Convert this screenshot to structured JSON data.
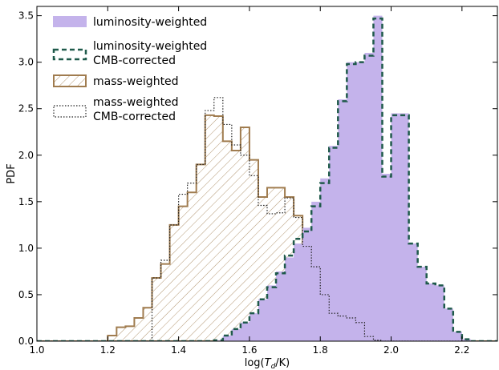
{
  "chart_data": {
    "type": "histogram",
    "ylabel": "PDF",
    "xlabel": "log(T_d/K)",
    "xlim": [
      1.0,
      2.3
    ],
    "ylim": [
      0.0,
      3.6
    ],
    "xticks": [
      "1.0",
      "1.2",
      "1.4",
      "1.6",
      "1.8",
      "2.0",
      "2.2"
    ],
    "yticks": [
      "0.0",
      "0.5",
      "1.0",
      "1.5",
      "2.0",
      "2.5",
      "3.0",
      "3.5"
    ],
    "bin_edges": [
      1.0,
      1.025,
      1.05,
      1.075,
      1.1,
      1.125,
      1.15,
      1.175,
      1.2,
      1.225,
      1.25,
      1.275,
      1.3,
      1.325,
      1.35,
      1.375,
      1.4,
      1.425,
      1.45,
      1.475,
      1.5,
      1.525,
      1.55,
      1.575,
      1.6,
      1.625,
      1.65,
      1.675,
      1.7,
      1.725,
      1.75,
      1.775,
      1.8,
      1.825,
      1.85,
      1.875,
      1.9,
      1.925,
      1.95,
      1.975,
      2.0,
      2.025,
      2.05,
      2.075,
      2.1,
      2.125,
      2.15,
      2.175,
      2.2,
      2.225,
      2.25,
      2.275,
      2.3
    ],
    "legend_position": "top-left",
    "series": [
      {
        "name": "luminosity-weighted",
        "style": "filled",
        "color": "#c4b3eb",
        "values": [
          0,
          0,
          0,
          0,
          0,
          0,
          0,
          0,
          0,
          0,
          0,
          0,
          0,
          0,
          0,
          0,
          0,
          0,
          0,
          0,
          0.01,
          0.06,
          0.13,
          0.2,
          0.3,
          0.45,
          0.6,
          0.75,
          0.9,
          1.05,
          1.22,
          1.5,
          1.75,
          2.1,
          2.6,
          3.0,
          3.0,
          3.1,
          3.5,
          1.8,
          2.45,
          2.45,
          1.05,
          0.8,
          0.62,
          0.6,
          0.35,
          0.1,
          0.02,
          0,
          0,
          0
        ]
      },
      {
        "name": "luminosity-weighted\nCMB-corrected",
        "style": "dashed",
        "color": "#1f5a4b",
        "values": [
          0,
          0,
          0,
          0,
          0,
          0,
          0,
          0,
          0,
          0,
          0,
          0,
          0,
          0,
          0,
          0,
          0,
          0,
          0,
          0,
          0.01,
          0.06,
          0.13,
          0.2,
          0.3,
          0.45,
          0.58,
          0.73,
          0.92,
          1.1,
          1.18,
          1.45,
          1.7,
          2.08,
          2.58,
          2.98,
          3.0,
          3.07,
          3.47,
          1.77,
          2.43,
          2.43,
          1.05,
          0.8,
          0.62,
          0.6,
          0.35,
          0.1,
          0.02,
          0,
          0,
          0
        ]
      },
      {
        "name": "mass-weighted",
        "style": "hatched",
        "color": "#a07c4f",
        "values": [
          0,
          0,
          0,
          0,
          0,
          0,
          0,
          0,
          0.06,
          0.15,
          0.16,
          0.25,
          0.36,
          0.68,
          0.83,
          1.25,
          1.45,
          1.6,
          1.9,
          2.43,
          2.42,
          2.15,
          2.05,
          2.3,
          1.95,
          1.55,
          1.65,
          1.65,
          1.55,
          1.35,
          1.02,
          0.8,
          0.5,
          0.3,
          0.27,
          0.25,
          0.2,
          0.05,
          0.01,
          0,
          0,
          0,
          0,
          0,
          0,
          0,
          0,
          0,
          0,
          0,
          0,
          0
        ]
      },
      {
        "name": "mass-weighted\nCMB-corrected",
        "style": "dotted",
        "color": "#222222",
        "values": [
          0,
          0,
          0,
          0,
          0,
          0,
          0,
          0,
          0,
          0,
          0,
          0,
          0,
          0.68,
          0.87,
          1.25,
          1.58,
          1.7,
          1.9,
          2.48,
          2.62,
          2.33,
          2.11,
          2.0,
          1.78,
          1.46,
          1.37,
          1.38,
          1.54,
          1.33,
          1.02,
          0.8,
          0.5,
          0.3,
          0.27,
          0.25,
          0.2,
          0.05,
          0.01,
          0,
          0,
          0,
          0,
          0,
          0,
          0,
          0,
          0,
          0,
          0,
          0,
          0
        ]
      }
    ]
  }
}
